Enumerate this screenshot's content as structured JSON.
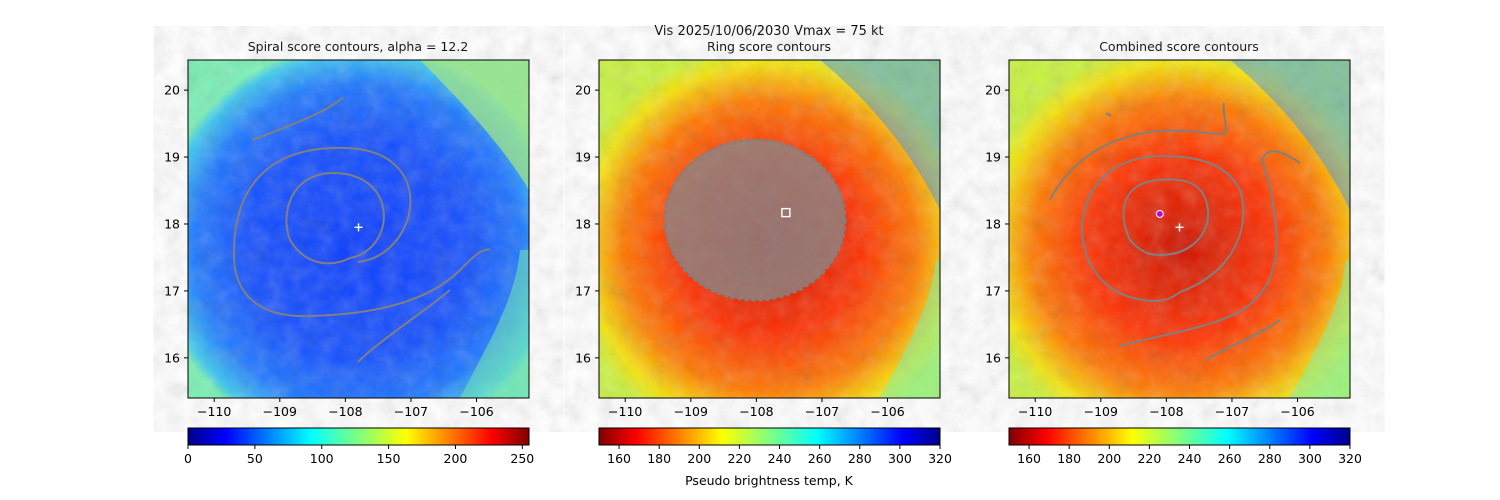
{
  "figure": {
    "suptitle_line1": "Vis  2025/10/06/2030    Vmax = 75 kt"
  },
  "chart_data": [
    {
      "type": "heatmap",
      "title": "Spiral score contours, alpha = 12.2",
      "colormap": "jet",
      "xlim": [
        -110.4,
        -105.2
      ],
      "ylim": [
        15.4,
        20.45
      ],
      "xticks": [
        -110,
        -109,
        -108,
        -107,
        -106
      ],
      "yticks": [
        16,
        17,
        18,
        19,
        20
      ],
      "colorbar": {
        "ticks": [
          0,
          50,
          100,
          150,
          200,
          250
        ],
        "range": [
          0,
          255
        ],
        "label": ""
      },
      "contour_color": "#808080",
      "center_markers": [
        {
          "symbol": "plus",
          "x": -107.8,
          "y": 17.95,
          "color": "#ffffff"
        }
      ],
      "field_levels": {
        "background": 0.78,
        "core": 0.62,
        "outer_edge": 0.5
      }
    },
    {
      "type": "heatmap",
      "title": "Ring score contours",
      "colormap": "jet",
      "xlim": [
        -110.4,
        -105.2
      ],
      "ylim": [
        15.4,
        20.45
      ],
      "xticks": [
        -110,
        -109,
        -108,
        -107,
        -106
      ],
      "yticks": [
        16,
        17,
        18,
        19,
        20
      ],
      "colorbar": {
        "ticks": [
          160,
          180,
          200,
          220,
          240,
          260,
          280,
          300,
          320
        ],
        "range": [
          150,
          320
        ],
        "label": "Pseudo brightness temp, K"
      },
      "contour_color": "#808080",
      "center_markers": [
        {
          "symbol": "square",
          "x": -107.55,
          "y": 18.17,
          "color": "#ffffff"
        }
      ]
    },
    {
      "type": "heatmap",
      "title": "Combined score contours",
      "colormap": "jet",
      "xlim": [
        -110.4,
        -105.2
      ],
      "ylim": [
        15.4,
        20.45
      ],
      "xticks": [
        -110,
        -109,
        -108,
        -107,
        -106
      ],
      "yticks": [
        16,
        17,
        18,
        19,
        20
      ],
      "colorbar": {
        "ticks": [
          160,
          180,
          200,
          220,
          240,
          260,
          280,
          300,
          320
        ],
        "range": [
          150,
          320
        ],
        "label": ""
      },
      "contour_color": "#808080",
      "center_markers": [
        {
          "symbol": "circle",
          "x": -108.1,
          "y": 18.15,
          "color": "#cc00cc"
        },
        {
          "symbol": "plus",
          "x": -107.8,
          "y": 17.95,
          "color": "#ffffff"
        }
      ]
    }
  ],
  "shared": {
    "ring_title_top": "Vis  2025/10/06/2030    Vmax = 75 kt"
  }
}
